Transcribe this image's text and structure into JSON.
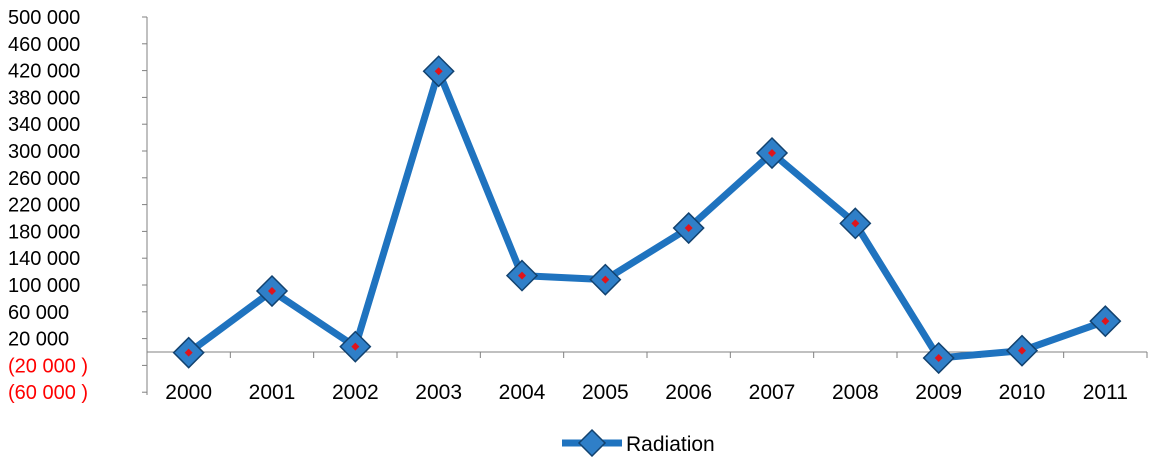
{
  "chart_data": {
    "type": "line",
    "title": "",
    "xlabel": "",
    "ylabel": "",
    "categories": [
      "2000",
      "2001",
      "2002",
      "2003",
      "2004",
      "2005",
      "2006",
      "2007",
      "2008",
      "2009",
      "2010",
      "2011"
    ],
    "series": [
      {
        "name": "Radiation",
        "values": [
          -1000,
          91000,
          8000,
          419000,
          114000,
          108000,
          185000,
          297000,
          192000,
          -9000,
          2000,
          46000
        ]
      }
    ],
    "ylim": [
      -60000,
      500000
    ],
    "yticks": [
      {
        "value": 500000,
        "label": "500 000"
      },
      {
        "value": 460000,
        "label": "460 000"
      },
      {
        "value": 420000,
        "label": "420 000"
      },
      {
        "value": 380000,
        "label": "380 000"
      },
      {
        "value": 340000,
        "label": "340 000"
      },
      {
        "value": 300000,
        "label": "300 000"
      },
      {
        "value": 260000,
        "label": "260 000"
      },
      {
        "value": 220000,
        "label": "220 000"
      },
      {
        "value": 180000,
        "label": "180 000"
      },
      {
        "value": 140000,
        "label": "140 000"
      },
      {
        "value": 100000,
        "label": "100 000"
      },
      {
        "value": 60000,
        "label": "60 000"
      },
      {
        "value": 20000,
        "label": "20 000"
      },
      {
        "value": -20000,
        "label": "(20 000  )"
      },
      {
        "value": -60000,
        "label": "(60 000  )"
      }
    ],
    "grid": false,
    "legend": "bottom",
    "colors": {
      "line": "#1f73bf",
      "marker_fill": "#2f7fc8",
      "marker_center": "#e0141b",
      "axis": "#808080",
      "negative_label": "#ff0000"
    }
  }
}
